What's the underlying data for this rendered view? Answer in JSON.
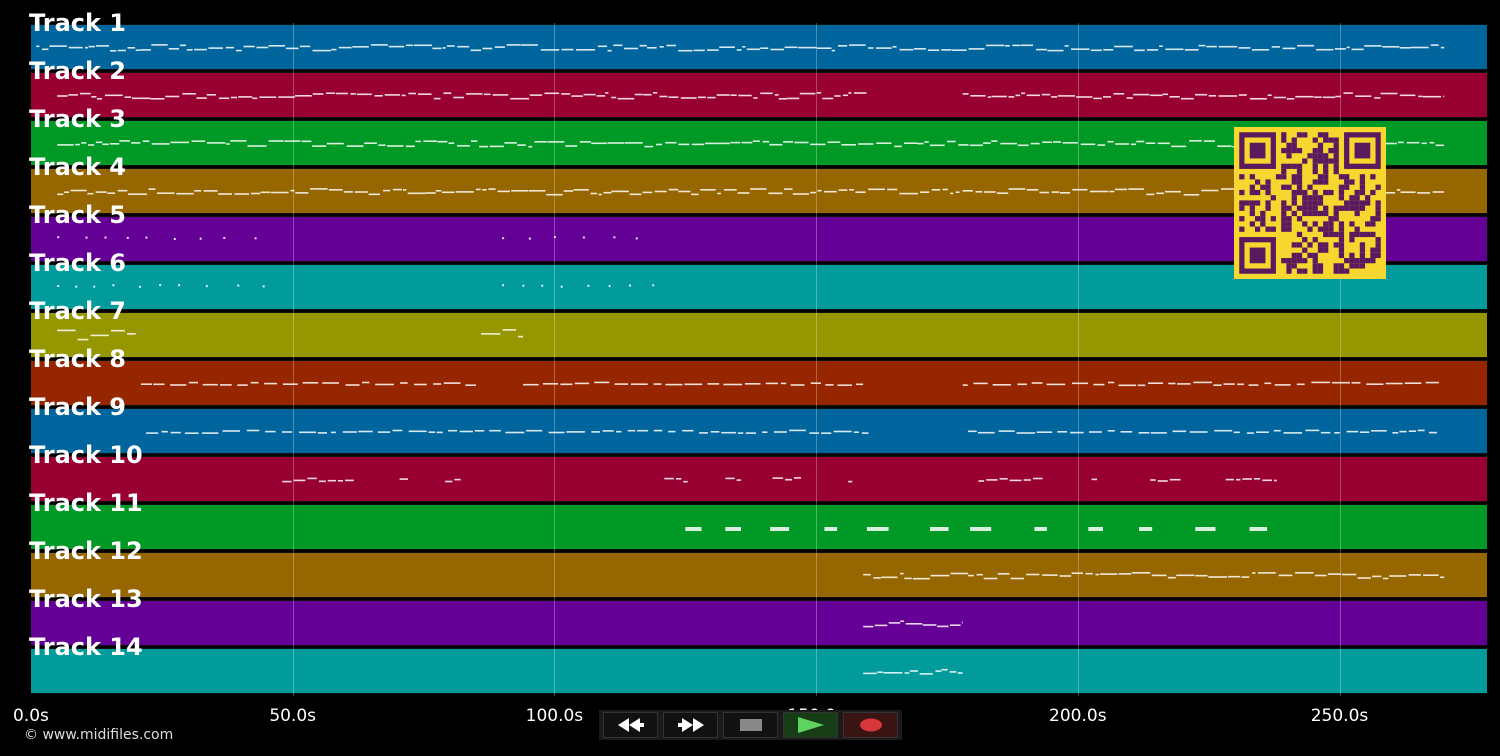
{
  "timeline": {
    "ticks": [
      {
        "label": "0.0s",
        "seconds": 0
      },
      {
        "label": "50.0s",
        "seconds": 50
      },
      {
        "label": "100.0s",
        "seconds": 100
      },
      {
        "label": "150.0s",
        "seconds": 150
      },
      {
        "label": "200.0s",
        "seconds": 200
      },
      {
        "label": "250.0s",
        "seconds": 250
      }
    ],
    "max_seconds": 278
  },
  "tracks": [
    {
      "label": "Track 1",
      "color": "#00659c",
      "segments": [
        [
          1,
          270
        ]
      ],
      "style": "dense"
    },
    {
      "label": "Track 2",
      "color": "#970030",
      "segments": [
        [
          5,
          160
        ],
        [
          178,
          270
        ]
      ],
      "style": "dense"
    },
    {
      "label": "Track 3",
      "color": "#009926",
      "segments": [
        [
          5,
          270
        ]
      ],
      "style": "dense"
    },
    {
      "label": "Track 4",
      "color": "#966600",
      "segments": [
        [
          5,
          270
        ]
      ],
      "style": "dense"
    },
    {
      "label": "Track 5",
      "color": "#640096",
      "segments": [
        [
          5,
          45
        ],
        [
          90,
          119
        ]
      ],
      "style": "dots"
    },
    {
      "label": "Track 6",
      "color": "#009b9a",
      "segments": [
        [
          5,
          46
        ],
        [
          90,
          120
        ]
      ],
      "style": "dots"
    },
    {
      "label": "Track 7",
      "color": "#969600",
      "segments": [
        [
          5,
          20
        ],
        [
          86,
          94
        ]
      ],
      "style": "sparse"
    },
    {
      "label": "Track 8",
      "color": "#962600",
      "segments": [
        [
          21,
          85
        ],
        [
          94,
          159
        ],
        [
          178,
          269
        ]
      ],
      "style": "dashes"
    },
    {
      "label": "Track 9",
      "color": "#00659c",
      "segments": [
        [
          22,
          160
        ],
        [
          179,
          269
        ]
      ],
      "style": "dashes"
    },
    {
      "label": "Track 10",
      "color": "#970030",
      "segments": [
        [
          48,
          85
        ],
        [
          121,
          158
        ],
        [
          181,
          238
        ]
      ],
      "style": "clusters"
    },
    {
      "label": "Track 11",
      "color": "#009926",
      "segments": [
        [
          125,
          240
        ]
      ],
      "style": "blocks"
    },
    {
      "label": "Track 12",
      "color": "#966600",
      "segments": [
        [
          159,
          270
        ]
      ],
      "style": "dense"
    },
    {
      "label": "Track 13",
      "color": "#640096",
      "segments": [
        [
          159,
          178
        ]
      ],
      "style": "dense"
    },
    {
      "label": "Track 14",
      "color": "#009b9a",
      "segments": [
        [
          159,
          178
        ]
      ],
      "style": "dense"
    }
  ],
  "qr": {
    "fg": "#5a1a5e",
    "bg": "#f7d630"
  },
  "footer": {
    "copyright": "© www.midifiles.com"
  },
  "transport": {
    "rewind": "rewind-icon",
    "forward": "fast-forward-icon",
    "stop": "stop-icon",
    "play": "play-icon",
    "record": "record-icon"
  }
}
